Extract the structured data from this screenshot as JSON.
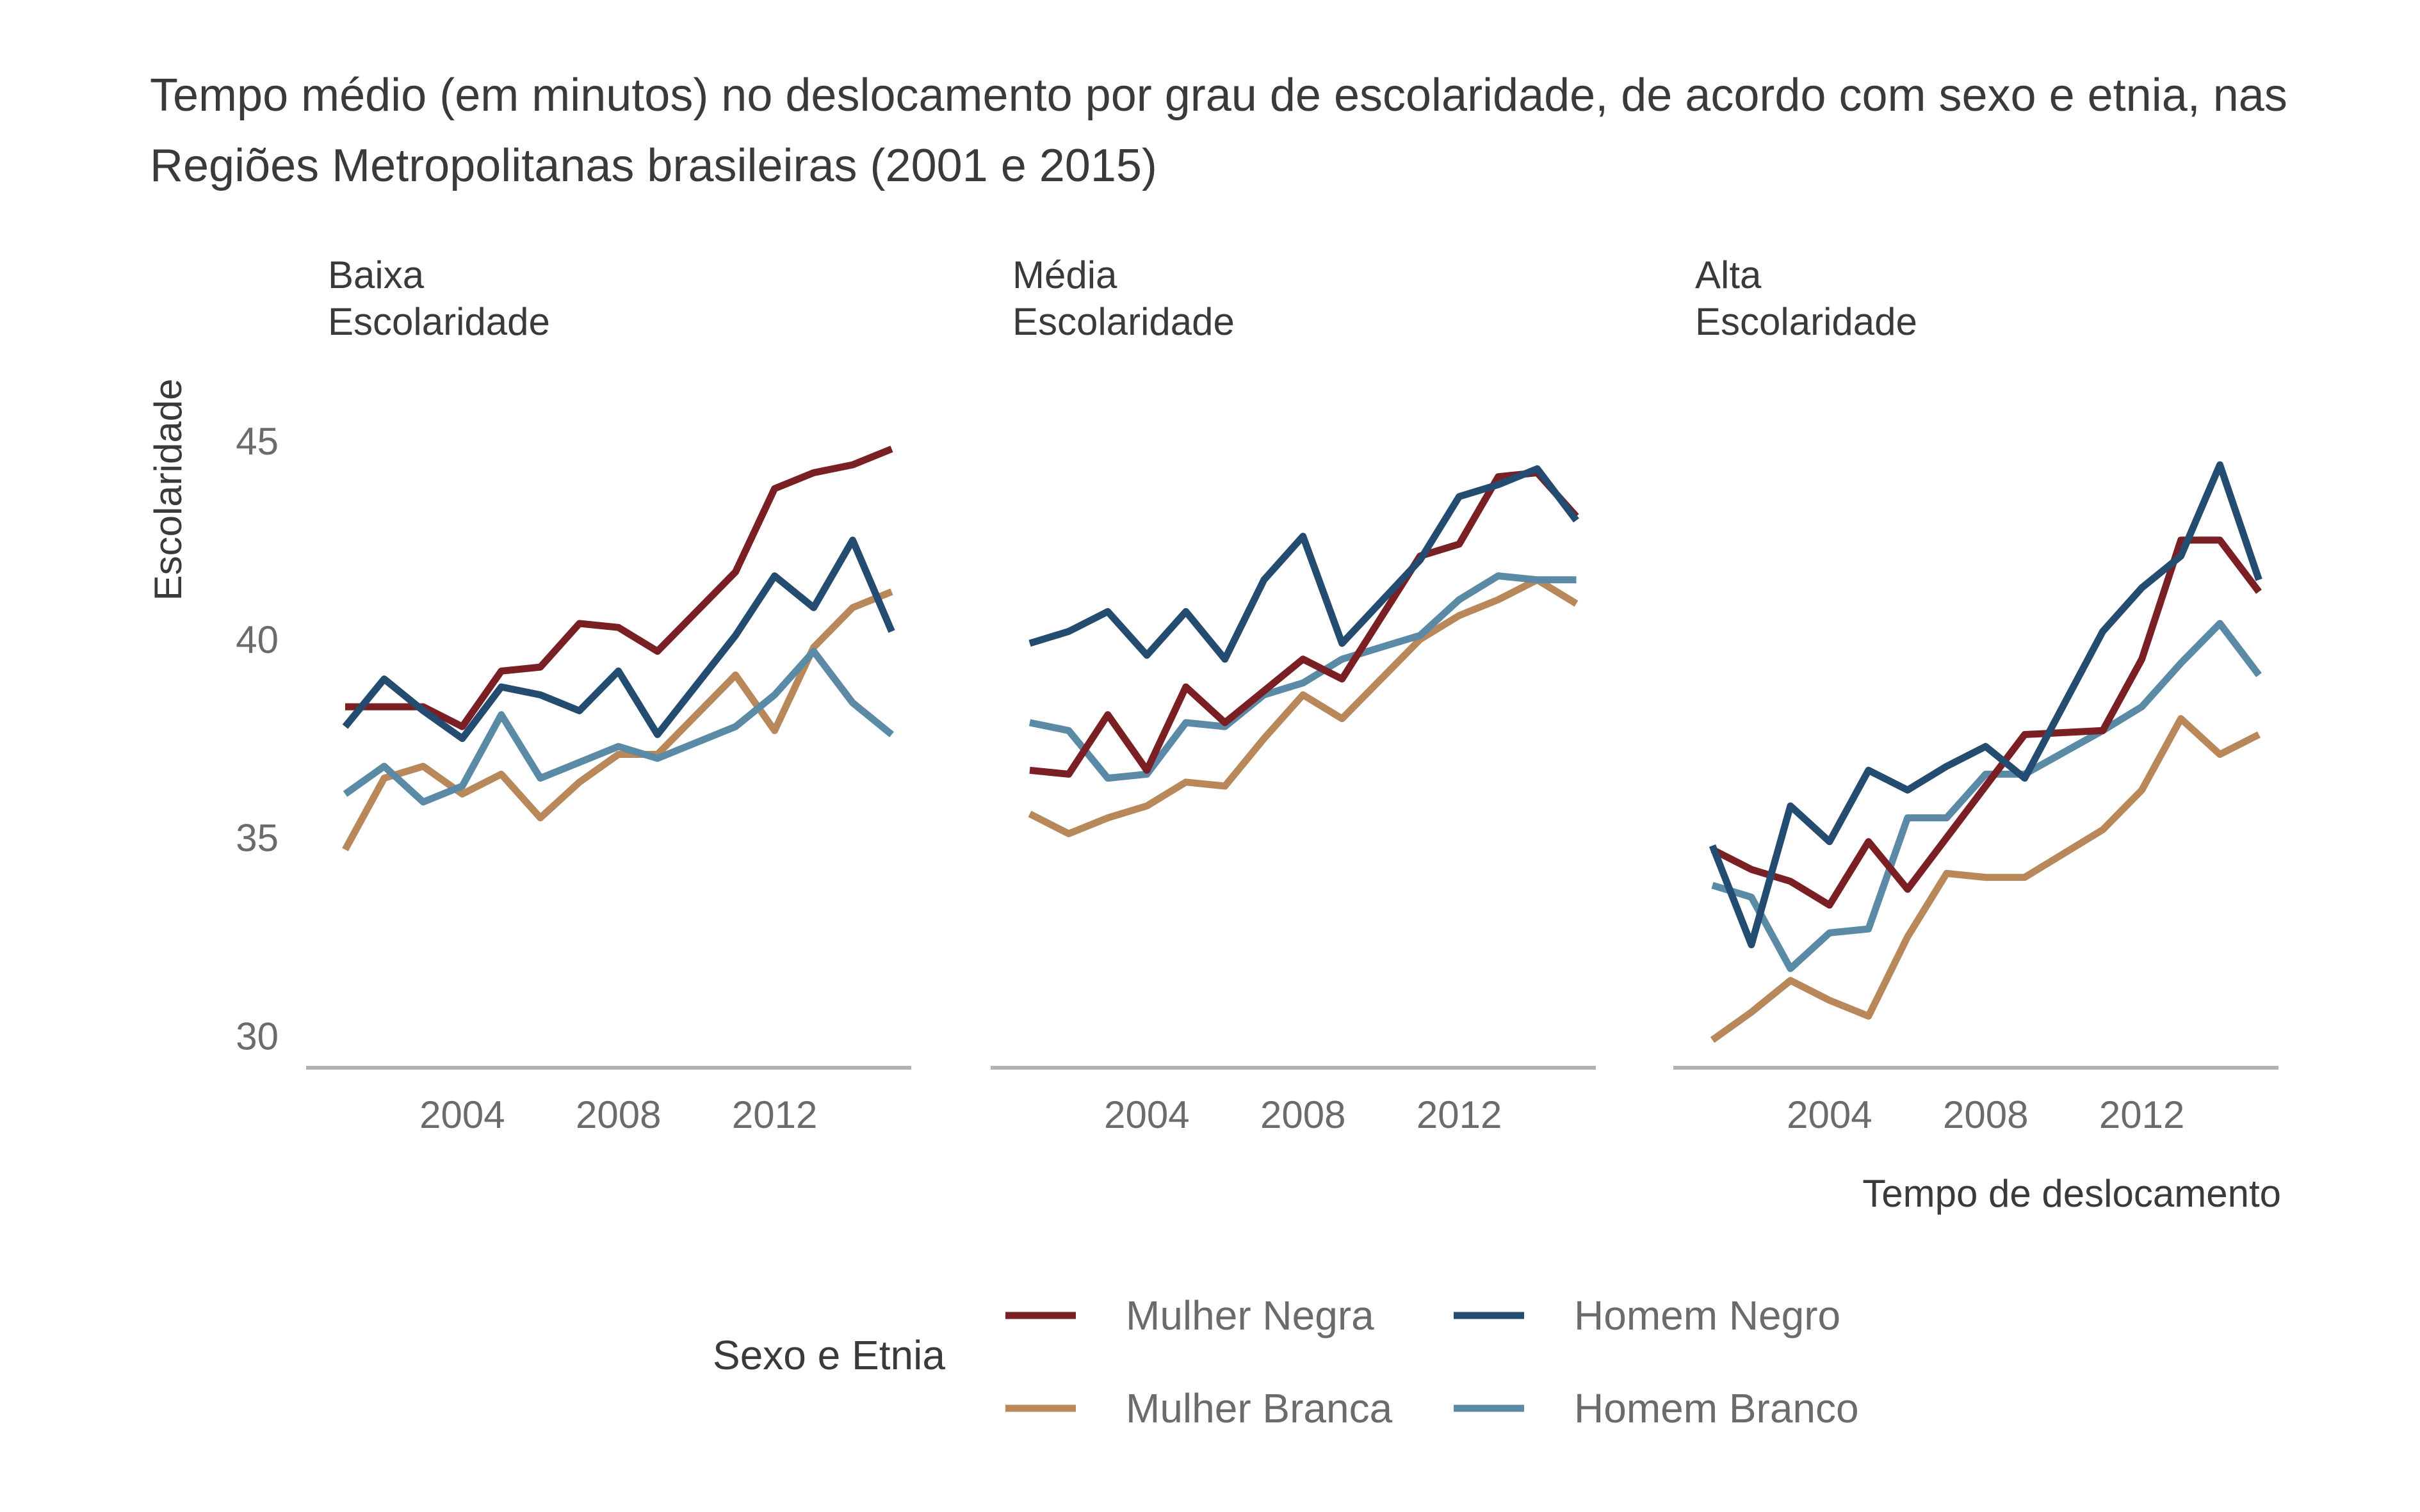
{
  "title_lines": [
    "Tempo médio (em minutos) no deslocamento por grau de escolaridade, de acordo com sexo e etnia, nas",
    "Regiões Metropolitanas brasileiras (2001 e 2015)"
  ],
  "chart_data": {
    "type": "line",
    "title": "Tempo médio (em minutos) no deslocamento por grau de escolaridade, de acordo com sexo e etnia, nas Regiões Metropolitanas brasileiras (2001 e 2015)",
    "xlabel": "Tempo de deslocamento",
    "ylabel": "Escolaridade",
    "x": [
      2001,
      2002,
      2003,
      2004,
      2005,
      2006,
      2007,
      2008,
      2009,
      2011,
      2012,
      2013,
      2014,
      2015
    ],
    "x_ticks": [
      2004,
      2008,
      2012
    ],
    "y_ticks": [
      30,
      35,
      40,
      45
    ],
    "xlim": [
      2000,
      2015.5
    ],
    "ylim": [
      29.2,
      47
    ],
    "grid": false,
    "legend_position": "bottom",
    "legend_title": "Sexo e Etnia",
    "series_colors": {
      "Mulher Negra": "#7a1f24",
      "Homem Negro": "#244c70",
      "Mulher Branca": "#b8875a",
      "Homem Branco": "#5b8aa6"
    },
    "legend_order": [
      "Mulher Negra",
      "Homem Negro",
      "Mulher Branca",
      "Homem Branco"
    ],
    "panels": [
      {
        "label_lines": [
          "Baixa",
          "Escolaridade"
        ],
        "series": [
          {
            "name": "Mulher Negra",
            "values": [
              38.3,
              38.3,
              38.3,
              37.8,
              39.2,
              39.3,
              40.4,
              40.3,
              39.7,
              41.7,
              43.8,
              44.2,
              44.4,
              44.8
            ]
          },
          {
            "name": "Homem Negro",
            "values": [
              37.8,
              39.0,
              38.2,
              37.5,
              38.8,
              38.6,
              38.2,
              39.2,
              37.6,
              40.1,
              41.6,
              40.8,
              42.5,
              40.2
            ]
          },
          {
            "name": "Mulher Branca",
            "values": [
              34.7,
              36.5,
              36.8,
              36.1,
              36.6,
              35.5,
              36.4,
              37.1,
              37.1,
              39.1,
              37.7,
              39.8,
              40.8,
              41.2
            ]
          },
          {
            "name": "Homem Branco",
            "values": [
              36.1,
              36.8,
              35.9,
              36.3,
              38.1,
              36.5,
              36.9,
              37.3,
              37.0,
              37.8,
              38.6,
              39.7,
              38.4,
              37.6
            ]
          }
        ]
      },
      {
        "label_lines": [
          "Média",
          "Escolaridade"
        ],
        "series": [
          {
            "name": "Mulher Negra",
            "values": [
              36.7,
              36.6,
              38.1,
              36.7,
              38.8,
              37.9,
              38.7,
              39.5,
              39.0,
              42.1,
              42.4,
              44.1,
              44.2,
              43.1
            ]
          },
          {
            "name": "Homem Negro",
            "values": [
              39.9,
              40.2,
              40.7,
              39.6,
              40.7,
              39.5,
              41.5,
              42.6,
              39.9,
              42.0,
              43.6,
              43.9,
              44.3,
              43.0
            ]
          },
          {
            "name": "Mulher Branca",
            "values": [
              35.6,
              35.1,
              35.5,
              35.8,
              36.4,
              36.3,
              37.5,
              38.6,
              38.0,
              40.0,
              40.6,
              41.0,
              41.5,
              40.9
            ]
          },
          {
            "name": "Homem Branco",
            "values": [
              37.9,
              37.7,
              36.5,
              36.6,
              37.9,
              37.8,
              38.6,
              38.9,
              39.5,
              40.1,
              41.0,
              41.6,
              41.5,
              41.5
            ]
          }
        ]
      },
      {
        "label_lines": [
          "Alta",
          "Escolaridade"
        ],
        "series": [
          {
            "name": "Mulher Negra",
            "values": [
              34.7,
              34.2,
              33.9,
              33.3,
              34.9,
              33.7,
              35.0,
              36.3,
              37.6,
              37.7,
              39.5,
              42.5,
              42.5,
              41.2
            ]
          },
          {
            "name": "Homem Negro",
            "values": [
              34.8,
              32.3,
              35.8,
              34.9,
              36.7,
              36.2,
              36.8,
              37.3,
              36.5,
              40.2,
              41.3,
              42.1,
              44.4,
              41.5
            ]
          },
          {
            "name": "Mulher Branca",
            "values": [
              29.9,
              30.6,
              31.4,
              30.9,
              30.5,
              32.5,
              34.1,
              34.0,
              34.0,
              35.2,
              36.2,
              38.0,
              37.1,
              37.6
            ]
          },
          {
            "name": "Homem Branco",
            "values": [
              33.8,
              33.5,
              31.7,
              32.6,
              32.7,
              35.5,
              35.5,
              36.6,
              36.6,
              37.7,
              38.3,
              39.4,
              40.4,
              39.1
            ]
          }
        ]
      }
    ]
  }
}
